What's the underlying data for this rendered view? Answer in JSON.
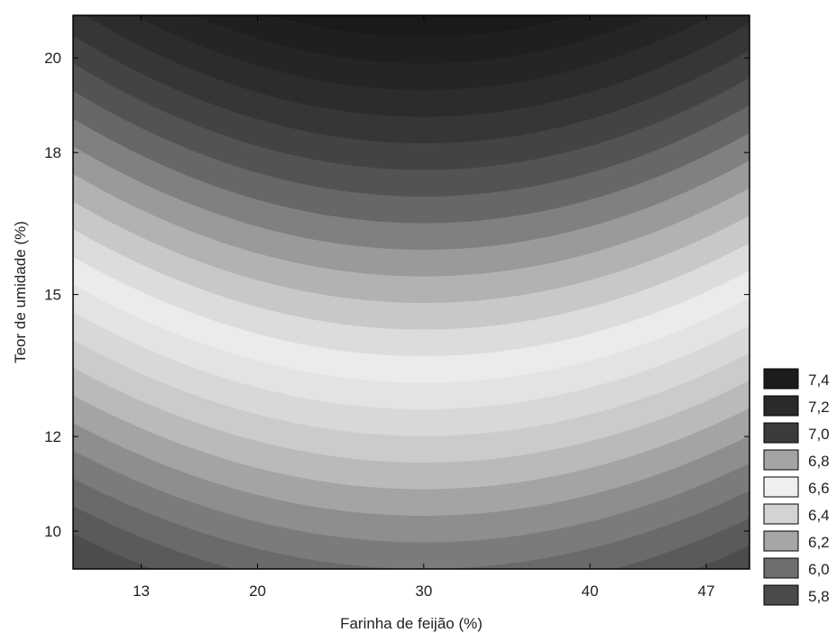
{
  "chart_data": {
    "type": "contour",
    "xlabel": "Farinha de feijão (%)",
    "ylabel": "Teor de umidade (%)",
    "xlim": [
      8.9,
      49.6
    ],
    "ylim": [
      9.2,
      20.9
    ],
    "x_ticks": [
      13,
      20,
      30,
      40,
      47
    ],
    "x_tick_labels": [
      "13",
      "20",
      "30",
      "40",
      "47"
    ],
    "y_ticks": [
      10,
      12,
      15,
      18,
      20
    ],
    "y_tick_labels": [
      "10",
      "12",
      "15",
      "18",
      "20"
    ],
    "legend_position": "right",
    "legend": [
      {
        "label": "7,4",
        "color": "#1c1c1c"
      },
      {
        "label": "7,2",
        "color": "#2a2a2a"
      },
      {
        "label": "7,0",
        "color": "#3b3b3b"
      },
      {
        "label": "6,8",
        "color": "#a4a4a4"
      },
      {
        "label": "6,6",
        "color": "#efefef"
      },
      {
        "label": "6,4",
        "color": "#d3d3d3"
      },
      {
        "label": "6,2",
        "color": "#a6a6a6"
      },
      {
        "label": "6,0",
        "color": "#6e6e6e"
      },
      {
        "label": "5,8",
        "color": "#4a4a4a"
      }
    ],
    "band_colors": [
      "#4c4c4c",
      "#5a5a5a",
      "#6a6a6a",
      "#7b7b7b",
      "#8e8e8e",
      "#a4a4a4",
      "#bababa",
      "#cbcbcb",
      "#d8d8d8",
      "#e3e3e3",
      "#ebebeb",
      "#dcdcdc",
      "#c8c8c8",
      "#b2b2b2",
      "#9a9a9a",
      "#808080",
      "#676767",
      "#535353",
      "#434343",
      "#363636",
      "#2c2c2c",
      "#252525",
      "#1f1f1f",
      "#1a1a1a"
    ]
  }
}
